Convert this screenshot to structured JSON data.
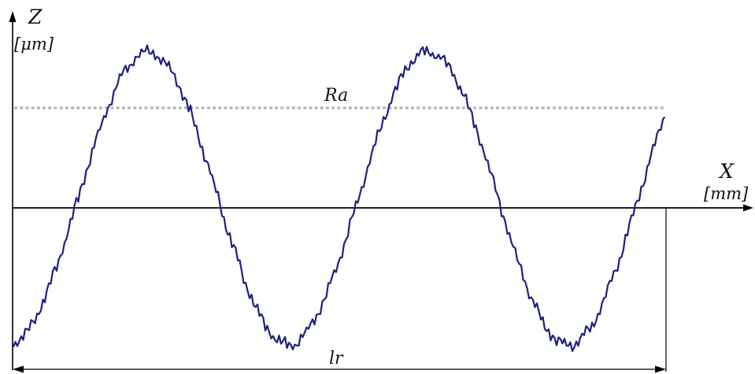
{
  "diagram": {
    "axes": {
      "z_label": "Z",
      "z_unit": "[μm]",
      "x_label": "X",
      "x_unit": "[mm]"
    },
    "ra_label": "Ra",
    "lr_label": "lr",
    "colors": {
      "profile": "#1f2080",
      "ra_line": "#b5b5b5",
      "axis": "#000000"
    }
  }
}
